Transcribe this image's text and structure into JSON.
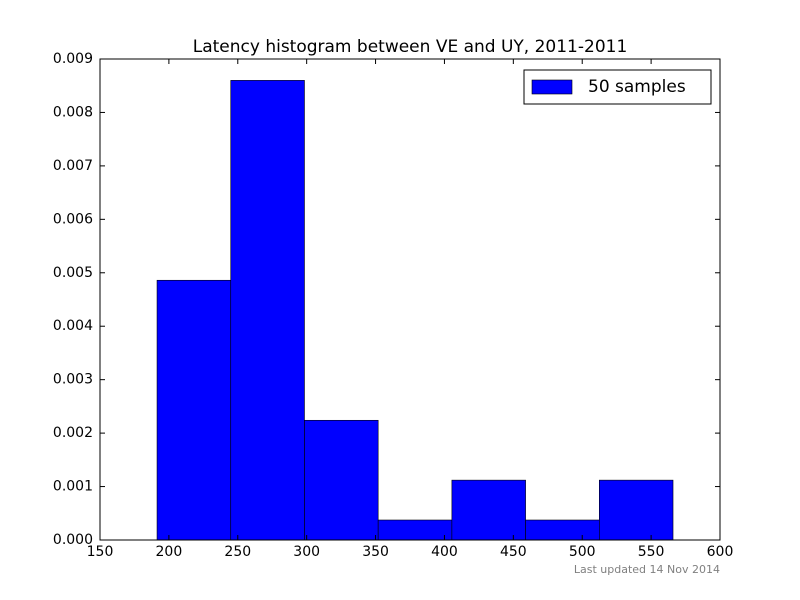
{
  "chart_data": {
    "type": "histogram",
    "title": "Latency histogram between VE and UY, 2011-2011",
    "bins": [
      191.4,
      244.9,
      298.4,
      351.9,
      405.4,
      458.9,
      512.4,
      565.9
    ],
    "series": [
      {
        "name": "50 samples",
        "color": "#0000ff",
        "values": [
          0.00486,
          0.0086,
          0.00224,
          0.000374,
          0.00112,
          0.000374,
          0.00112
        ]
      }
    ],
    "xlim": [
      150,
      600
    ],
    "xticks": [
      150,
      200,
      250,
      300,
      350,
      400,
      450,
      500,
      550,
      600
    ],
    "ylim": [
      0,
      0.009
    ],
    "yticks": [
      {
        "value": 0,
        "label": "0.000"
      },
      {
        "value": 0.001,
        "label": "0.001"
      },
      {
        "value": 0.002,
        "label": "0.002"
      },
      {
        "value": 0.003,
        "label": "0.003"
      },
      {
        "value": 0.004,
        "label": "0.004"
      },
      {
        "value": 0.005,
        "label": "0.005"
      },
      {
        "value": 0.006,
        "label": "0.006"
      },
      {
        "value": 0.007,
        "label": "0.007"
      },
      {
        "value": 0.008,
        "label": "0.008"
      },
      {
        "value": 0.009,
        "label": "0.009"
      }
    ],
    "legend": "upper right",
    "annotation": "Last updated 14 Nov 2014"
  }
}
